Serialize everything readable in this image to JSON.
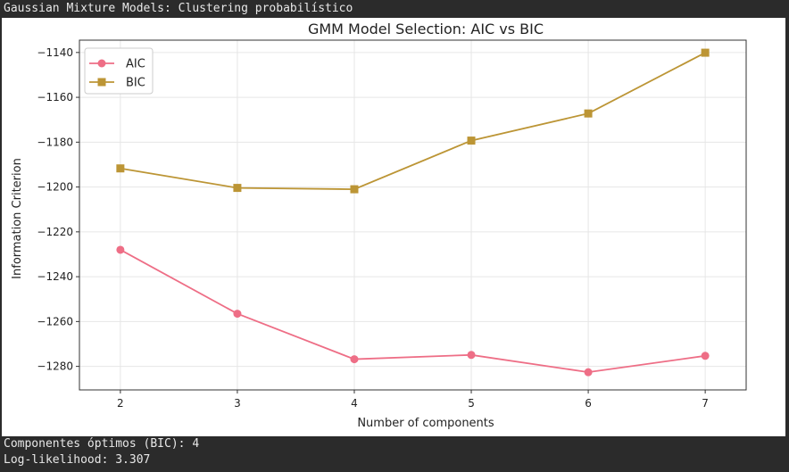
{
  "header": {
    "title": "Gaussian Mixture Models: Clustering probabilístico"
  },
  "chart_data": {
    "type": "line",
    "title": "GMM Model Selection: AIC vs BIC",
    "xlabel": "Number of components",
    "ylabel": "Information Criterion",
    "x": [
      2,
      3,
      4,
      5,
      6,
      7
    ],
    "xlim": [
      1.65,
      7.35
    ],
    "ylim": [
      -1290.5,
      -1134.5
    ],
    "yticks": [
      -1280,
      -1260,
      -1240,
      -1220,
      -1200,
      -1180,
      -1160,
      -1140
    ],
    "grid": true,
    "legend_position": "top-left",
    "series": [
      {
        "name": "AIC",
        "marker": "circle",
        "color": "#ee6e86",
        "values": [
          -1228.0,
          -1256.5,
          -1276.8,
          -1274.9,
          -1282.6,
          -1275.3
        ]
      },
      {
        "name": "BIC",
        "marker": "square",
        "color": "#bc9535",
        "values": [
          -1191.7,
          -1200.4,
          -1201.0,
          -1179.3,
          -1167.2,
          -1140.1
        ]
      }
    ]
  },
  "footer": {
    "line1": "Componentes óptimos (BIC): 4",
    "line2": "Log-likelihood: 3.307"
  }
}
